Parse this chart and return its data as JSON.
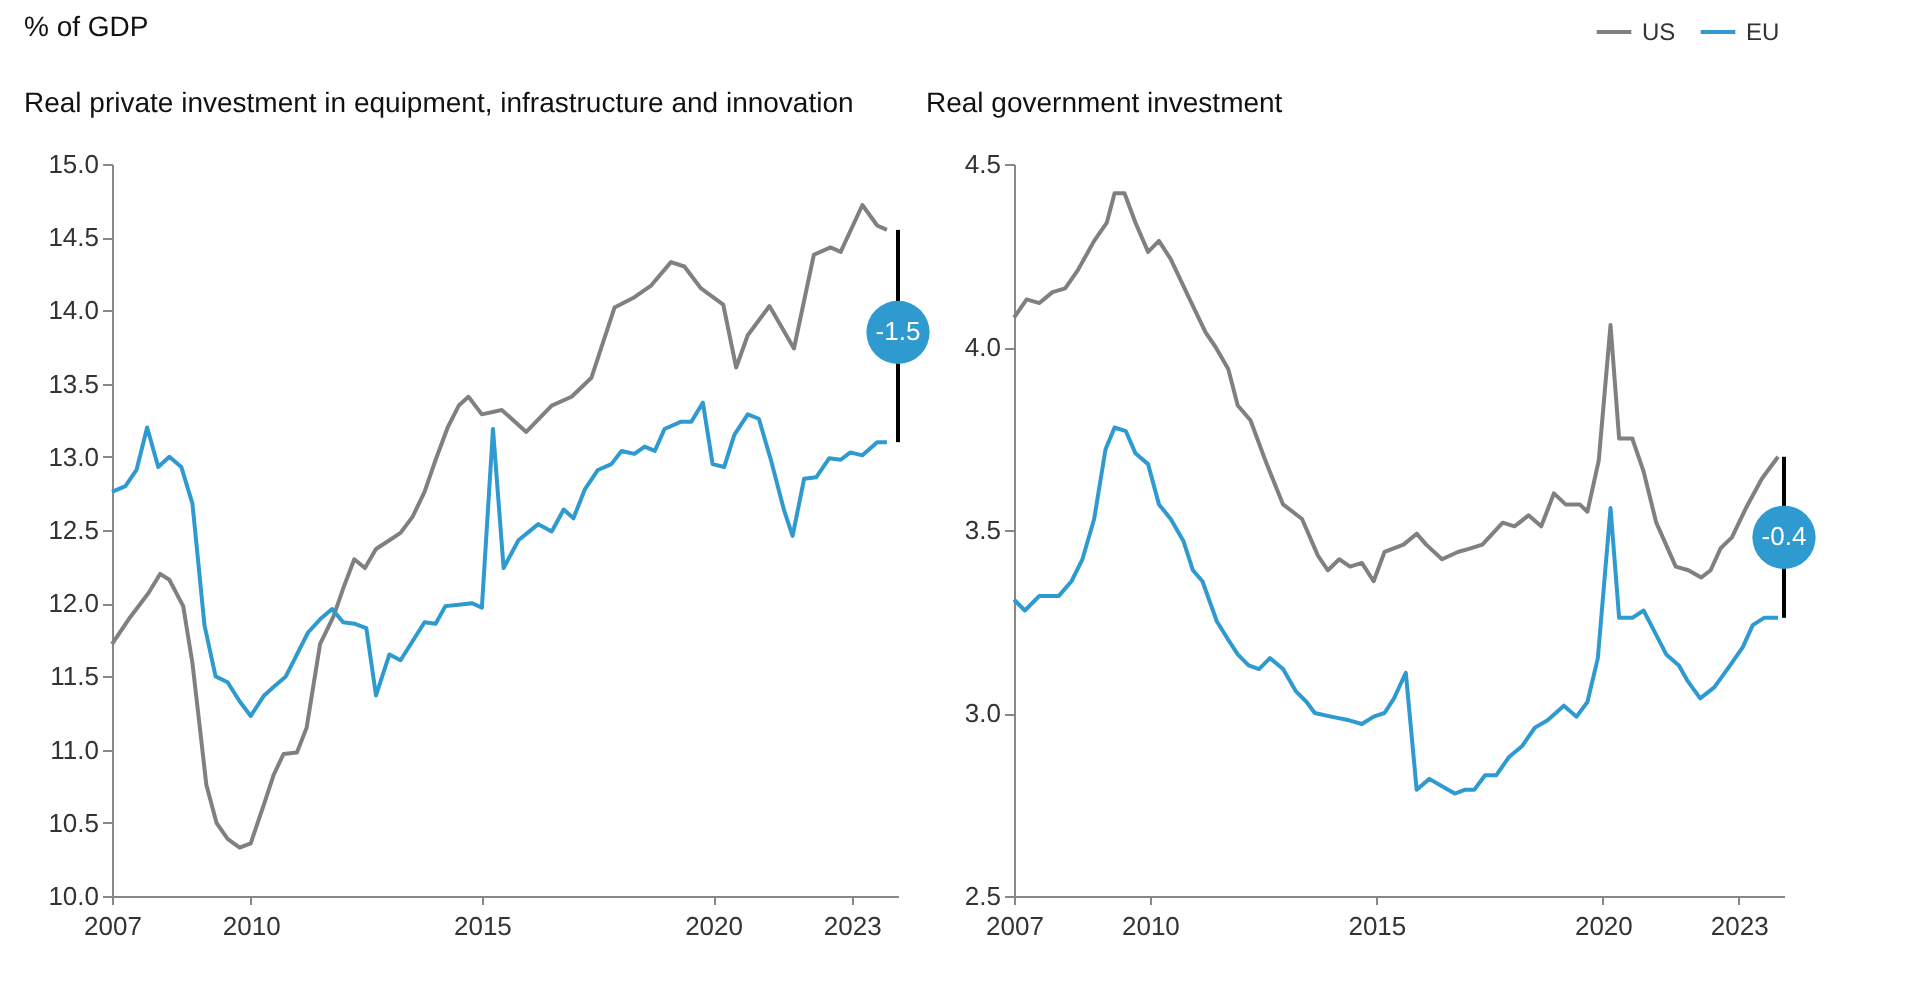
{
  "chart_data": [
    {
      "type": "line",
      "title": "Real private investment in equipment, infrastructure and innovation",
      "ylabel": "% of GDP",
      "xlim": [
        2007,
        2024
      ],
      "xticks": [
        2007,
        2010,
        2015,
        2020,
        2023
      ],
      "ylim": [
        10.0,
        15.0
      ],
      "yticks": [
        {
          "value": 10,
          "label": "10.0"
        },
        10.5,
        {
          "value": 11,
          "label": "11.0"
        },
        11.5,
        {
          "value": 12,
          "label": "12.0"
        },
        12.5,
        {
          "value": 13,
          "label": "13.0"
        },
        13.5,
        {
          "value": 14,
          "label": "14.0"
        },
        14.5,
        {
          "value": 15,
          "label": "15.0"
        }
      ],
      "grid": false,
      "line_style": "solid",
      "marker": "none",
      "annotations": [
        {
          "text": "-1.5",
          "x": 2024,
          "y": 13.85
        }
      ],
      "series": [
        {
          "color": "#808080",
          "x": [
            2007.0,
            2007.36,
            2007.79,
            2008.04,
            2008.24,
            2008.54,
            2008.74,
            2008.9,
            2009.04,
            2009.26,
            2009.5,
            2009.76,
            2010.0,
            2010.29,
            2010.5,
            2010.71,
            2011.0,
            2011.21,
            2011.5,
            2011.79,
            2012.0,
            2012.24,
            2012.47,
            2012.71,
            2013.0,
            2013.24,
            2013.5,
            2013.76,
            2014.0,
            2014.26,
            2014.5,
            2014.71,
            2015.0,
            2015.43,
            2015.96,
            2016.51,
            2016.94,
            2017.37,
            2017.87,
            2018.3,
            2018.66,
            2019.09,
            2019.38,
            2019.74,
            2020.22,
            2020.5,
            2020.75,
            2021.22,
            2021.75,
            2022.18,
            2022.54,
            2022.76,
            2023.23,
            2023.55,
            2023.76
          ],
          "values": [
            11.72,
            11.89,
            12.07,
            12.2,
            12.16,
            11.98,
            11.59,
            11.15,
            10.76,
            10.5,
            10.39,
            10.33,
            10.36,
            10.63,
            10.83,
            10.97,
            10.98,
            11.15,
            11.72,
            11.91,
            12.1,
            12.3,
            12.24,
            12.37,
            12.43,
            12.48,
            12.59,
            12.76,
            12.98,
            13.2,
            13.35,
            13.41,
            13.29,
            13.32,
            13.17,
            13.35,
            13.41,
            13.54,
            14.02,
            14.09,
            14.17,
            14.33,
            14.3,
            14.15,
            14.04,
            13.61,
            13.83,
            14.03,
            13.74,
            14.38,
            14.43,
            14.4,
            14.72,
            14.58,
            14.55
          ]
        },
        {
          "color": "#2e9ad0",
          "x": [
            2007.0,
            2007.29,
            2007.53,
            2007.76,
            2008.0,
            2008.24,
            2008.5,
            2008.74,
            2009.0,
            2009.24,
            2009.5,
            2009.76,
            2010.0,
            2010.29,
            2010.5,
            2010.76,
            2011.0,
            2011.24,
            2011.5,
            2011.76,
            2012.0,
            2012.24,
            2012.5,
            2012.71,
            2013.0,
            2013.24,
            2013.5,
            2013.76,
            2014.0,
            2014.21,
            2014.5,
            2014.79,
            2015.0,
            2015.24,
            2015.47,
            2015.79,
            2016.22,
            2016.51,
            2016.77,
            2016.98,
            2017.23,
            2017.51,
            2017.8,
            2018.02,
            2018.3,
            2018.52,
            2018.74,
            2018.95,
            2019.31,
            2019.53,
            2019.78,
            2019.99,
            2020.24,
            2020.46,
            2020.75,
            2020.99,
            2021.25,
            2021.54,
            2021.72,
            2021.97,
            2022.23,
            2022.51,
            2022.76,
            2022.97,
            2023.23,
            2023.55,
            2023.76
          ],
          "values": [
            12.76,
            12.8,
            12.91,
            13.2,
            12.93,
            13.0,
            12.93,
            12.68,
            11.85,
            11.5,
            11.46,
            11.33,
            11.23,
            11.37,
            11.43,
            11.5,
            11.65,
            11.8,
            11.89,
            11.96,
            11.87,
            11.86,
            11.83,
            11.37,
            11.65,
            11.61,
            11.74,
            11.87,
            11.86,
            11.98,
            11.99,
            12.0,
            11.97,
            13.19,
            12.24,
            12.43,
            12.54,
            12.49,
            12.64,
            12.58,
            12.78,
            12.91,
            12.95,
            13.04,
            13.02,
            13.07,
            13.04,
            13.19,
            13.24,
            13.24,
            13.37,
            12.95,
            12.93,
            13.15,
            13.29,
            13.26,
            12.98,
            12.63,
            12.46,
            12.85,
            12.86,
            12.99,
            12.98,
            13.03,
            13.01,
            13.1,
            13.1
          ]
        }
      ]
    },
    {
      "type": "line",
      "title": "Real government investment",
      "xlim": [
        2007,
        2024
      ],
      "xticks": [
        2007,
        2010,
        2015,
        2020,
        2023
      ],
      "ylim": [
        2.5,
        4.5
      ],
      "yticks": [
        2.5,
        {
          "value": 3,
          "label": "3.0"
        },
        3.5,
        {
          "value": 4,
          "label": "4.0"
        },
        4.5
      ],
      "grid": false,
      "line_style": "solid",
      "marker": "none",
      "legend": "top right",
      "annotations": [
        {
          "text": "-0.4",
          "x": 2024,
          "y": 3.48
        }
      ],
      "series": [
        {
          "name": "US",
          "color": "#808080",
          "x": [
            2007.0,
            2007.28,
            2007.56,
            2007.85,
            2008.13,
            2008.41,
            2008.77,
            2009.05,
            2009.22,
            2009.44,
            2009.68,
            2009.96,
            2010.2,
            2010.46,
            2010.88,
            2011.23,
            2011.45,
            2011.73,
            2011.94,
            2012.22,
            2012.58,
            2012.94,
            2013.36,
            2013.71,
            2013.93,
            2014.18,
            2014.42,
            2014.68,
            2014.94,
            2015.18,
            2015.6,
            2015.89,
            2016.1,
            2016.45,
            2016.8,
            2017.08,
            2017.34,
            2017.79,
            2018.05,
            2018.36,
            2018.64,
            2018.92,
            2019.18,
            2019.49,
            2019.66,
            2019.91,
            2020.17,
            2020.36,
            2020.65,
            2020.9,
            2021.18,
            2021.61,
            2021.89,
            2022.17,
            2022.38,
            2022.6,
            2022.85,
            2023.16,
            2023.51,
            2023.87
          ],
          "values": [
            4.08,
            4.13,
            4.12,
            4.15,
            4.16,
            4.21,
            4.29,
            4.34,
            4.42,
            4.42,
            4.34,
            4.26,
            4.29,
            4.24,
            4.13,
            4.04,
            4.0,
            3.94,
            3.84,
            3.8,
            3.68,
            3.57,
            3.53,
            3.43,
            3.39,
            3.42,
            3.4,
            3.41,
            3.36,
            3.44,
            3.46,
            3.49,
            3.46,
            3.42,
            3.44,
            3.45,
            3.46,
            3.52,
            3.51,
            3.54,
            3.51,
            3.6,
            3.57,
            3.57,
            3.55,
            3.69,
            4.06,
            3.75,
            3.75,
            3.66,
            3.52,
            3.4,
            3.39,
            3.37,
            3.39,
            3.45,
            3.48,
            3.56,
            3.64,
            3.7
          ]
        },
        {
          "name": "EU",
          "color": "#2e9ad0",
          "x": [
            2007.0,
            2007.24,
            2007.56,
            2007.99,
            2008.27,
            2008.51,
            2008.77,
            2009.02,
            2009.22,
            2009.47,
            2009.68,
            2009.96,
            2010.2,
            2010.46,
            2010.74,
            2010.95,
            2011.16,
            2011.48,
            2011.73,
            2011.94,
            2012.18,
            2012.41,
            2012.65,
            2012.94,
            2013.22,
            2013.46,
            2013.64,
            2014.0,
            2014.4,
            2014.68,
            2014.94,
            2015.18,
            2015.39,
            2015.65,
            2015.89,
            2016.17,
            2016.45,
            2016.73,
            2016.95,
            2017.16,
            2017.4,
            2017.65,
            2017.93,
            2018.22,
            2018.5,
            2018.78,
            2019.14,
            2019.42,
            2019.66,
            2019.89,
            2020.17,
            2020.36,
            2020.65,
            2020.9,
            2021.11,
            2021.4,
            2021.68,
            2021.86,
            2022.15,
            2022.46,
            2022.81,
            2023.09,
            2023.31,
            2023.56,
            2023.87
          ],
          "values": [
            3.31,
            3.28,
            3.32,
            3.32,
            3.36,
            3.42,
            3.53,
            3.72,
            3.78,
            3.77,
            3.71,
            3.68,
            3.57,
            3.53,
            3.47,
            3.39,
            3.36,
            3.25,
            3.2,
            3.16,
            3.13,
            3.12,
            3.15,
            3.12,
            3.06,
            3.03,
            3.0,
            2.99,
            2.98,
            2.97,
            2.99,
            3.0,
            3.04,
            3.11,
            2.79,
            2.82,
            2.8,
            2.78,
            2.79,
            2.79,
            2.83,
            2.83,
            2.88,
            2.91,
            2.96,
            2.98,
            3.02,
            2.99,
            3.03,
            3.15,
            3.56,
            3.26,
            3.26,
            3.28,
            3.23,
            3.16,
            3.13,
            3.09,
            3.04,
            3.07,
            3.13,
            3.18,
            3.24,
            3.26,
            3.26
          ]
        }
      ]
    }
  ]
}
